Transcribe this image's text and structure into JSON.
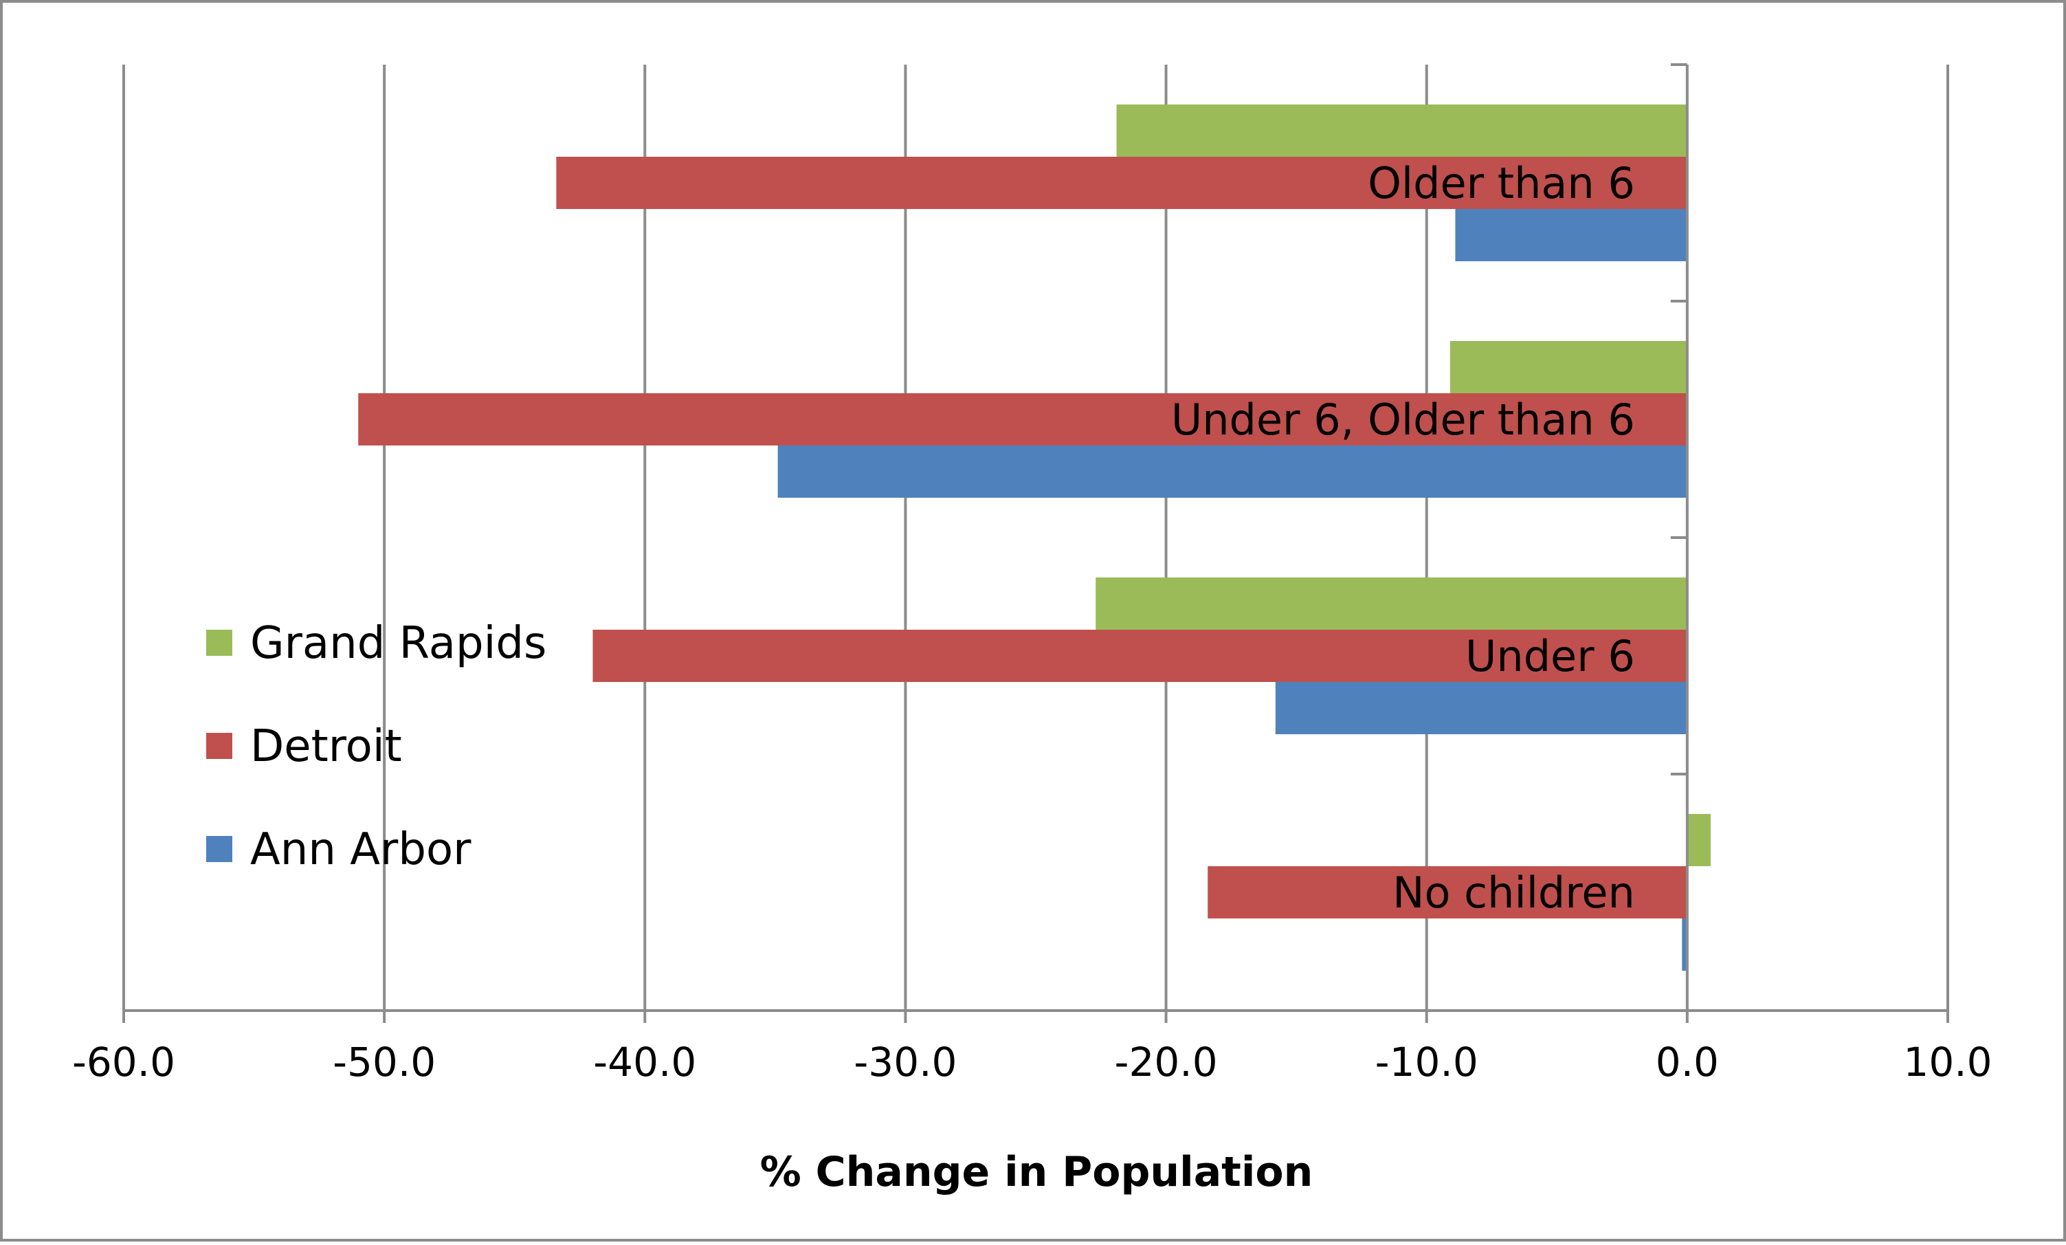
{
  "chart_data": {
    "type": "bar",
    "orientation": "horizontal",
    "categories": [
      "No children",
      "Under 6",
      "Under 6, Older than 6",
      "Older than 6"
    ],
    "series": [
      {
        "name": "Ann Arbor",
        "color": "#4f81bd",
        "values": [
          -0.2,
          -15.8,
          -34.9,
          -8.9
        ]
      },
      {
        "name": "Detroit",
        "color": "#c0504d",
        "values": [
          -18.4,
          -42.0,
          -51.0,
          -43.4
        ]
      },
      {
        "name": "Grand Rapids",
        "color": "#9bbb59",
        "values": [
          0.9,
          -22.7,
          -9.1,
          -21.9
        ]
      }
    ],
    "xlabel": "% Change in Population",
    "ylabel": "",
    "title": "",
    "xlim": [
      -60,
      10
    ],
    "xticks": [
      -60,
      -50,
      -40,
      -30,
      -20,
      -10,
      0,
      10
    ],
    "xtick_labels": [
      "-60.0",
      "-50.0",
      "-40.0",
      "-30.0",
      "-20.0",
      "-10.0",
      "0.0",
      "10.0"
    ],
    "grid": "vertical",
    "legend": {
      "placement": "center-left",
      "order": [
        "Grand Rapids",
        "Detroit",
        "Ann Arbor"
      ]
    }
  }
}
